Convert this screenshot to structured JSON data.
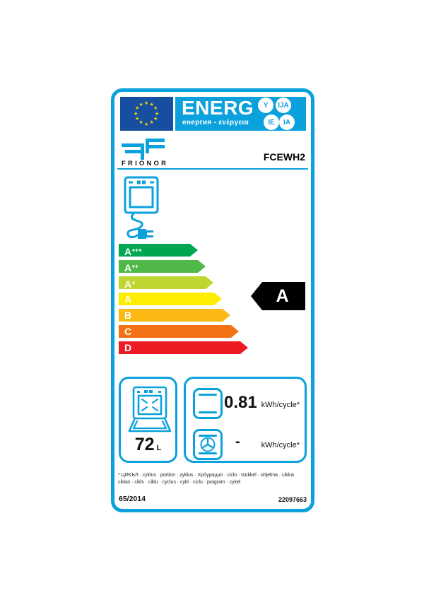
{
  "header": {
    "title": "ENERG",
    "subtitle": "енергия - ενέργεια",
    "suffixes": [
      "Y",
      "IJA",
      "IE",
      "IA"
    ]
  },
  "brand": {
    "name": "FRIONOR",
    "model": "FCEWH2"
  },
  "scale": {
    "rows": [
      {
        "grade": "A",
        "sup": "+++",
        "color": "#00a651",
        "width": 112
      },
      {
        "grade": "A",
        "sup": "++",
        "color": "#50b848",
        "width": 123
      },
      {
        "grade": "A",
        "sup": "+",
        "color": "#bed62f",
        "width": 134
      },
      {
        "grade": "A",
        "sup": "",
        "color": "#ffed00",
        "width": 146
      },
      {
        "grade": "B",
        "sup": "",
        "color": "#fdb913",
        "width": 158
      },
      {
        "grade": "C",
        "sup": "",
        "color": "#f47216",
        "width": 170
      },
      {
        "grade": "D",
        "sup": "",
        "color": "#ed1c24",
        "width": 183
      }
    ],
    "rating": "A",
    "rating_bg": "#000000"
  },
  "consumption": {
    "volume": "72",
    "volume_unit": "L",
    "conventional": {
      "value": "0.81",
      "unit": "kWh/cycle*"
    },
    "fan": {
      "value": "-",
      "unit": "kWh/cycle*"
    }
  },
  "footnote": {
    "line1": "* ЦИКЪЛ · cyklus · portion · zyklus · πρόγραμμα · ciclo · tsükkel · ohjelma · ciklus",
    "line2": "ciklas · cikls · ciklu · cyclus · cykl · ciclu · program · cykel"
  },
  "footer": {
    "regulation": "65/2014",
    "code": "22097663"
  },
  "icons": {
    "star_glyph": "★"
  },
  "colors": {
    "accent_blue": "#0aa1dc",
    "eu_blue": "#164fa0",
    "star_yellow": "#ffd500",
    "rating_black": "#000000"
  }
}
